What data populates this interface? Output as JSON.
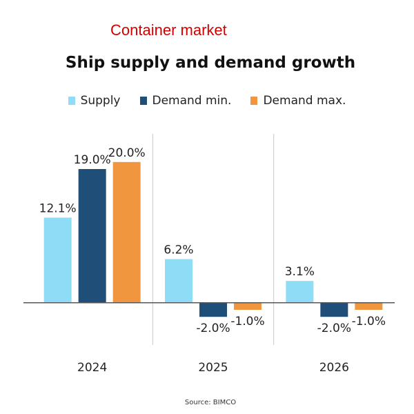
{
  "header": {
    "overlay_title": "Container market"
  },
  "colors": {
    "overlay_title": "#d40000",
    "axis": "#555555",
    "divider": "#c8c8c8",
    "text": "#222222"
  },
  "chart_data": {
    "type": "bar",
    "title": "Ship supply and demand growth",
    "categories": [
      "2024",
      "2025",
      "2026"
    ],
    "series": [
      {
        "name": "Supply",
        "color": "#8fdcf6",
        "values": [
          12.1,
          6.2,
          3.1
        ],
        "labels": [
          "12.1%",
          "6.2%",
          "3.1%"
        ]
      },
      {
        "name": "Demand min.",
        "color": "#1f4e79",
        "values": [
          19.0,
          -2.0,
          -2.0
        ],
        "labels": [
          "19.0%",
          "-2.0%",
          "-2.0%"
        ]
      },
      {
        "name": "Demand max.",
        "color": "#f0963f",
        "values": [
          20.0,
          -1.0,
          -1.0
        ],
        "labels": [
          "20.0%",
          "-1.0%",
          "-1.0%"
        ]
      }
    ],
    "ylim": [
      -6,
      24
    ],
    "legend": "top-center",
    "grid": false,
    "source": "Source: BIMCO"
  }
}
